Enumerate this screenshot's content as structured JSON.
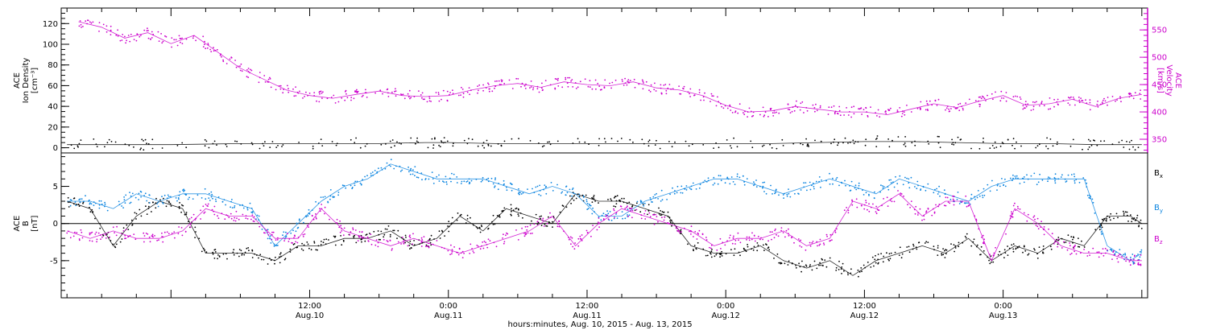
{
  "chart_data": [
    {
      "type": "line",
      "panel": "top",
      "ylabel_left": [
        "ACE",
        "Ion Density",
        "[cm⁻³]"
      ],
      "ylabel_right": [
        "ACE",
        "Velocity",
        "[km/s]"
      ],
      "left_axis": {
        "ylim": [
          -5,
          135
        ],
        "ticks": [
          0,
          20,
          40,
          60,
          80,
          100,
          120
        ],
        "color": "#000000"
      },
      "right_axis": {
        "ylim": [
          325,
          590
        ],
        "ticks": [
          350,
          400,
          450,
          500,
          550
        ],
        "color": "#cc00cc"
      },
      "x_range_hours": [
        -9.5,
        84.5
      ],
      "series": [
        {
          "axis": "right",
          "color": "#cc00cc",
          "points": [
            [
              -8,
              565
            ],
            [
              -6,
              555
            ],
            [
              -4,
              535
            ],
            [
              -2,
              545
            ],
            [
              0,
              525
            ],
            [
              2,
              540
            ],
            [
              4,
              510
            ],
            [
              6,
              480
            ],
            [
              8,
              460
            ],
            [
              10,
              440
            ],
            [
              12,
              430
            ],
            [
              14,
              425
            ],
            [
              16,
              432
            ],
            [
              18,
              438
            ],
            [
              20,
              430
            ],
            [
              22,
              428
            ],
            [
              24,
              430
            ],
            [
              26,
              440
            ],
            [
              28,
              448
            ],
            [
              30,
              452
            ],
            [
              32,
              445
            ],
            [
              34,
              455
            ],
            [
              36,
              450
            ],
            [
              38,
              448
            ],
            [
              40,
              455
            ],
            [
              42,
              444
            ],
            [
              44,
              440
            ],
            [
              46,
              430
            ],
            [
              48,
              412
            ],
            [
              50,
              400
            ],
            [
              52,
              402
            ],
            [
              54,
              410
            ],
            [
              56,
              405
            ],
            [
              58,
              400
            ],
            [
              60,
              400
            ],
            [
              62,
              395
            ],
            [
              64,
              405
            ],
            [
              66,
              415
            ],
            [
              68,
              408
            ],
            [
              70,
              420
            ],
            [
              72,
              430
            ],
            [
              74,
              412
            ],
            [
              76,
              415
            ],
            [
              78,
              423
            ],
            [
              80,
              410
            ],
            [
              82,
              425
            ],
            [
              84,
              432
            ]
          ]
        },
        {
          "axis": "left",
          "color": "#000000",
          "points": [
            [
              -9,
              3
            ],
            [
              -4,
              3
            ],
            [
              0,
              3
            ],
            [
              6,
              4
            ],
            [
              12,
              4
            ],
            [
              18,
              4
            ],
            [
              22,
              5
            ],
            [
              24,
              5
            ],
            [
              28,
              4
            ],
            [
              34,
              4
            ],
            [
              40,
              4
            ],
            [
              46,
              4
            ],
            [
              52,
              4
            ],
            [
              56,
              5
            ],
            [
              60,
              6
            ],
            [
              64,
              6
            ],
            [
              68,
              5
            ],
            [
              72,
              4
            ],
            [
              76,
              4
            ],
            [
              80,
              3
            ],
            [
              84,
              3
            ]
          ]
        }
      ]
    },
    {
      "type": "line",
      "panel": "bottom",
      "ylabel_left": [
        "ACE",
        "B",
        "[nT]"
      ],
      "ylim": [
        -10,
        9.5
      ],
      "ticks": [
        -5,
        0,
        5
      ],
      "x_range_hours": [
        -9.5,
        84.5
      ],
      "series": [
        {
          "name": "B",
          "sub": "x",
          "color": "#000000",
          "points": [
            [
              -9,
              3
            ],
            [
              -7,
              2
            ],
            [
              -5,
              -3
            ],
            [
              -3,
              1
            ],
            [
              -1,
              3
            ],
            [
              1,
              2
            ],
            [
              3,
              -4
            ],
            [
              5,
              -4
            ],
            [
              7,
              -4
            ],
            [
              9,
              -5
            ],
            [
              11,
              -3
            ],
            [
              13,
              -3
            ],
            [
              15,
              -2
            ],
            [
              17,
              -2
            ],
            [
              19,
              -1
            ],
            [
              21,
              -3
            ],
            [
              23,
              -2
            ],
            [
              25,
              1
            ],
            [
              27,
              -1
            ],
            [
              29,
              2
            ],
            [
              31,
              1
            ],
            [
              33,
              0
            ],
            [
              35,
              4
            ],
            [
              37,
              3
            ],
            [
              39,
              3
            ],
            [
              41,
              2
            ],
            [
              43,
              1
            ],
            [
              45,
              -3
            ],
            [
              47,
              -4
            ],
            [
              49,
              -4
            ],
            [
              51,
              -3
            ],
            [
              53,
              -5
            ],
            [
              55,
              -6
            ],
            [
              57,
              -5
            ],
            [
              59,
              -7
            ],
            [
              61,
              -5
            ],
            [
              63,
              -4
            ],
            [
              65,
              -3
            ],
            [
              67,
              -4
            ],
            [
              69,
              -2
            ],
            [
              71,
              -5
            ],
            [
              73,
              -3
            ],
            [
              75,
              -4
            ],
            [
              77,
              -2
            ],
            [
              79,
              -3
            ],
            [
              81,
              1
            ],
            [
              83,
              1
            ],
            [
              84,
              0
            ]
          ]
        },
        {
          "name": "B",
          "sub": "y",
          "color": "#0a84e0",
          "points": [
            [
              -9,
              3
            ],
            [
              -7,
              3
            ],
            [
              -5,
              2
            ],
            [
              -3,
              4
            ],
            [
              -1,
              3
            ],
            [
              1,
              4
            ],
            [
              3,
              4
            ],
            [
              5,
              3
            ],
            [
              7,
              2
            ],
            [
              9,
              -3
            ],
            [
              11,
              0
            ],
            [
              13,
              3
            ],
            [
              15,
              5
            ],
            [
              17,
              6
            ],
            [
              19,
              8
            ],
            [
              21,
              7
            ],
            [
              23,
              6
            ],
            [
              25,
              6
            ],
            [
              27,
              6
            ],
            [
              29,
              5
            ],
            [
              31,
              4
            ],
            [
              33,
              5
            ],
            [
              35,
              4
            ],
            [
              37,
              1
            ],
            [
              39,
              1
            ],
            [
              41,
              3
            ],
            [
              43,
              4
            ],
            [
              45,
              5
            ],
            [
              47,
              6
            ],
            [
              49,
              6
            ],
            [
              51,
              5
            ],
            [
              53,
              4
            ],
            [
              55,
              5
            ],
            [
              57,
              6
            ],
            [
              59,
              5
            ],
            [
              61,
              4
            ],
            [
              63,
              6
            ],
            [
              65,
              5
            ],
            [
              67,
              4
            ],
            [
              69,
              3
            ],
            [
              71,
              5
            ],
            [
              73,
              6
            ],
            [
              75,
              6
            ],
            [
              77,
              6
            ],
            [
              79,
              6
            ],
            [
              81,
              -3
            ],
            [
              83,
              -5
            ],
            [
              84,
              -4
            ]
          ]
        },
        {
          "name": "B",
          "sub": "z",
          "color": "#cc00cc",
          "points": [
            [
              -9,
              -1
            ],
            [
              -7,
              -2
            ],
            [
              -5,
              -1
            ],
            [
              -3,
              -2
            ],
            [
              -1,
              -2
            ],
            [
              1,
              -1
            ],
            [
              3,
              2
            ],
            [
              5,
              1
            ],
            [
              7,
              1
            ],
            [
              9,
              -2
            ],
            [
              11,
              -2
            ],
            [
              13,
              2
            ],
            [
              15,
              -1
            ],
            [
              17,
              -2
            ],
            [
              19,
              -3
            ],
            [
              21,
              -2
            ],
            [
              23,
              -3
            ],
            [
              25,
              -4
            ],
            [
              27,
              -3
            ],
            [
              29,
              -2
            ],
            [
              31,
              -1
            ],
            [
              33,
              1
            ],
            [
              35,
              -3
            ],
            [
              37,
              0
            ],
            [
              39,
              2
            ],
            [
              41,
              1
            ],
            [
              43,
              0
            ],
            [
              45,
              -1
            ],
            [
              47,
              -3
            ],
            [
              49,
              -2
            ],
            [
              51,
              -2
            ],
            [
              53,
              -1
            ],
            [
              55,
              -3
            ],
            [
              57,
              -2
            ],
            [
              59,
              3
            ],
            [
              61,
              2
            ],
            [
              63,
              4
            ],
            [
              65,
              1
            ],
            [
              67,
              3
            ],
            [
              69,
              3
            ],
            [
              71,
              -5
            ],
            [
              73,
              2
            ],
            [
              75,
              0
            ],
            [
              77,
              -3
            ],
            [
              79,
              -4
            ],
            [
              81,
              -4
            ],
            [
              83,
              -5
            ],
            [
              84,
              -5
            ]
          ]
        }
      ],
      "zero_line": true
    }
  ],
  "x_axis": {
    "major_ticks": [
      {
        "hours": 12,
        "time": "12:00",
        "date": "Aug.10"
      },
      {
        "hours": 24,
        "time": "0:00",
        "date": "Aug.11"
      },
      {
        "hours": 36,
        "time": "12:00",
        "date": "Aug.11"
      },
      {
        "hours": 48,
        "time": "0:00",
        "date": "Aug.12"
      },
      {
        "hours": 60,
        "time": "12:00",
        "date": "Aug.12"
      },
      {
        "hours": 72,
        "time": "0:00",
        "date": "Aug.13"
      }
    ],
    "caption": "hours:minutes, Aug. 10, 2015 - Aug. 13, 2015"
  }
}
